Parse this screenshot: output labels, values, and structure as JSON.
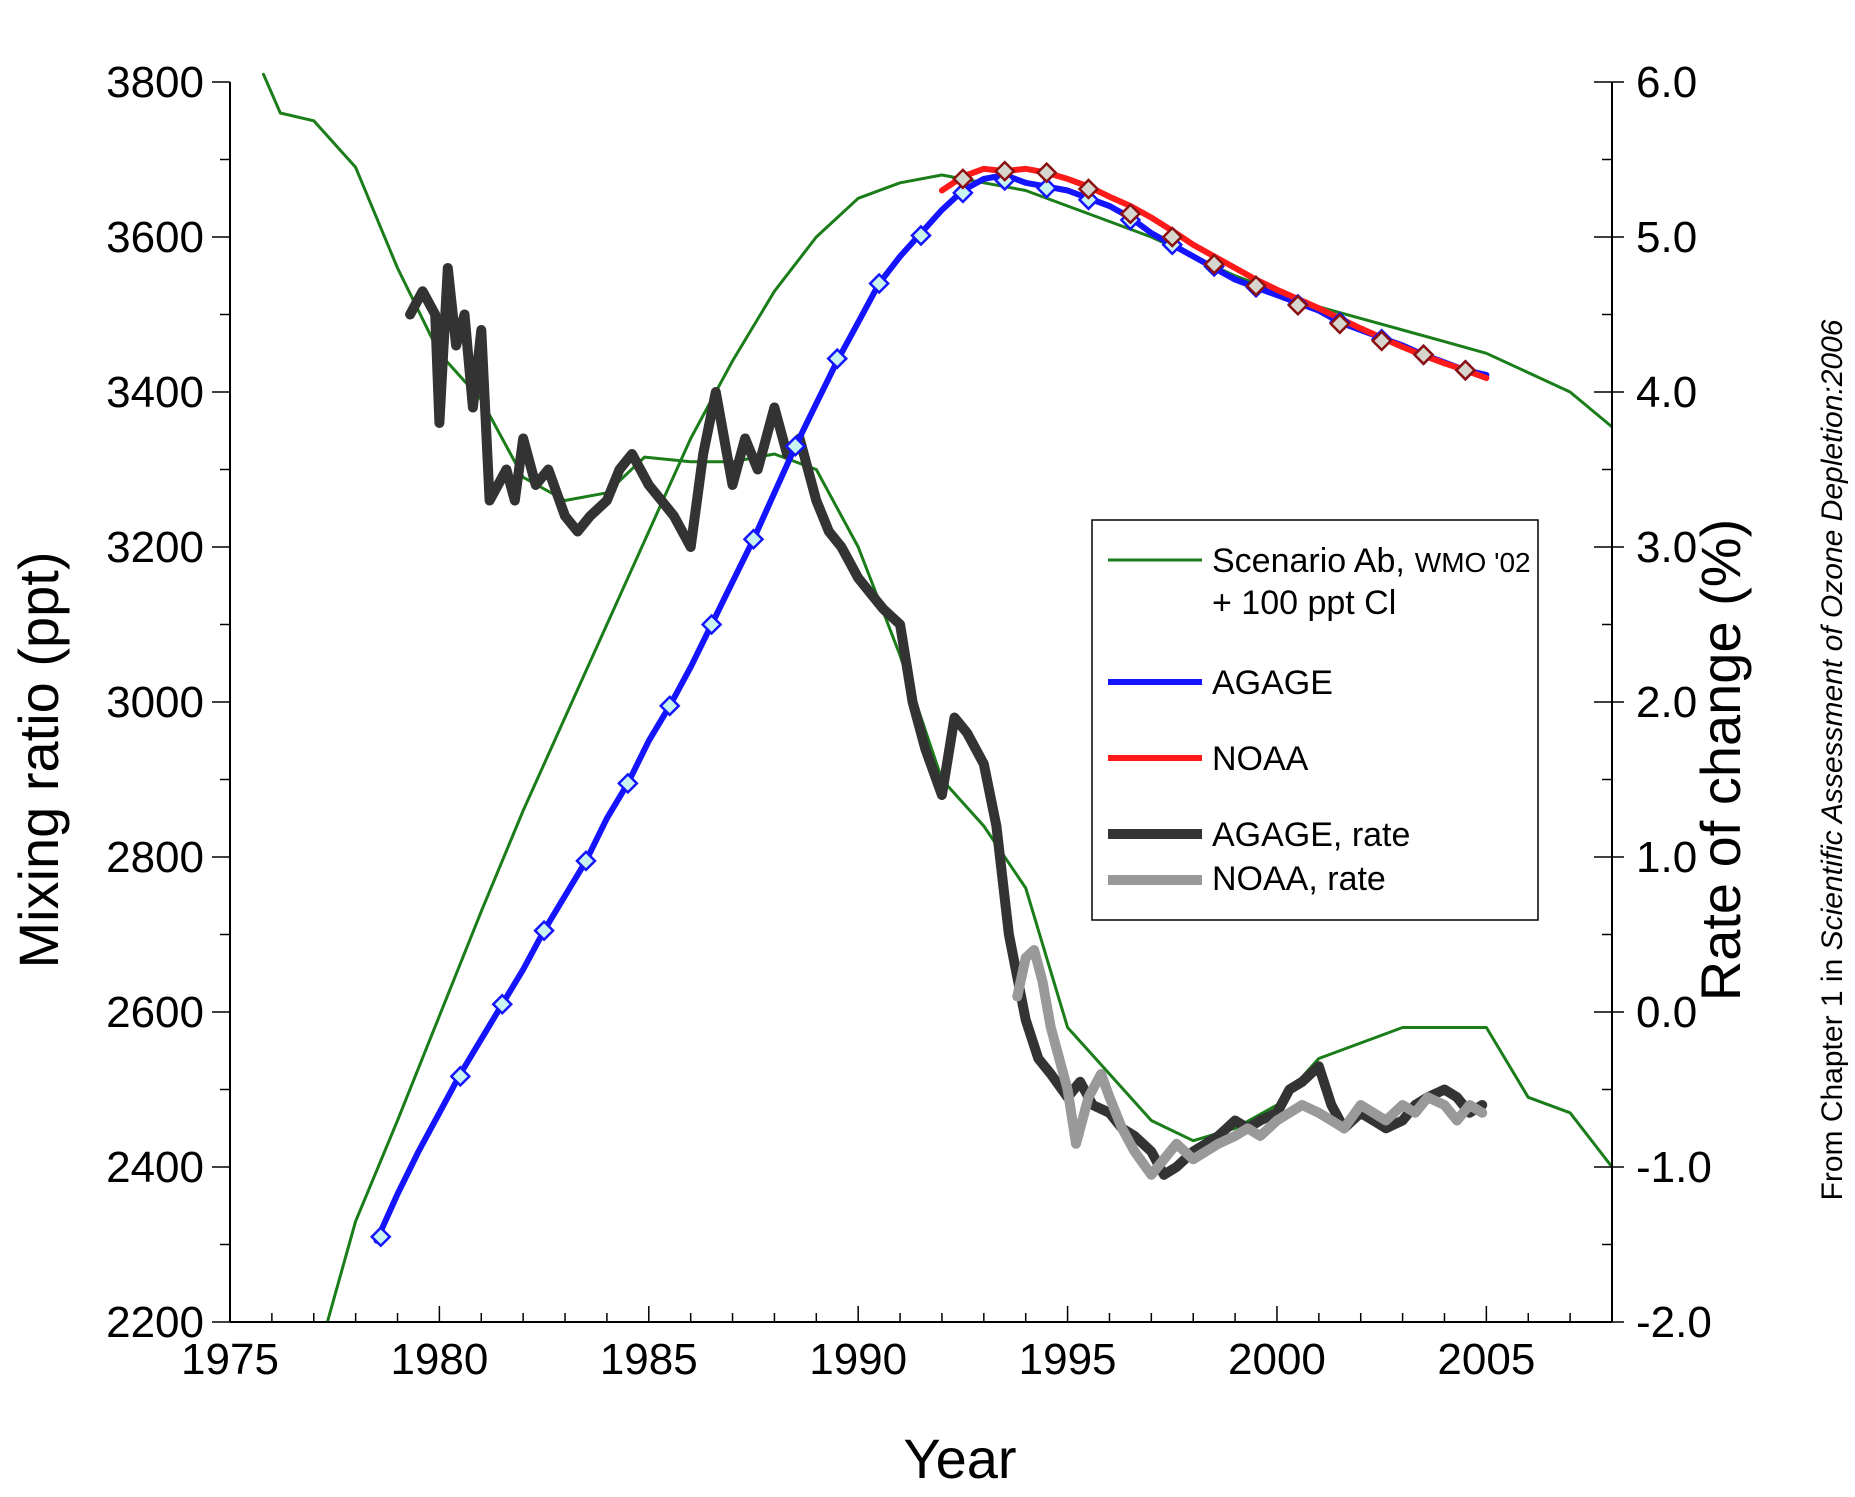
{
  "chart_data": {
    "type": "line",
    "xlabel": "Year",
    "ylabel": "Mixing ratio (ppt)",
    "y2label": "Rate of change (%)",
    "xlim": [
      1975,
      2008
    ],
    "ylim": [
      2200,
      3800
    ],
    "y2lim": [
      -2.0,
      6.0
    ],
    "x_ticks": [
      "1975",
      "1980",
      "1985",
      "1990",
      "1995",
      "2000",
      "2005"
    ],
    "y_ticks": [
      "2200",
      "2400",
      "2600",
      "2800",
      "3000",
      "3200",
      "3400",
      "3600",
      "3800"
    ],
    "y2_ticks": [
      "-2.0",
      "-1.0",
      "0.0",
      "1.0",
      "2.0",
      "3.0",
      "4.0",
      "5.0",
      "6.0"
    ],
    "grid": false,
    "legend_position": "center-right",
    "legend": {
      "scenario_line1": "Scenario Ab,",
      "scenario_small": "WMO '02",
      "scenario_line2": "+ 100 ppt Cl",
      "agage": "AGAGE",
      "noaa": "NOAA",
      "agage_rate": "AGAGE, rate",
      "noaa_rate": "NOAA, rate"
    },
    "credit": {
      "prefix": "From Chapter 1 in ",
      "italic": "Scientific Assessment of Ozone Depletion:2006"
    },
    "colors": {
      "scenario": "#1a7d1a",
      "agage": "#1414ff",
      "noaa": "#ff1a1a",
      "agage_rate": "#333333",
      "noaa_rate": "#999999",
      "marker_agage_fill": "#c9f3f0",
      "marker_noaa_fill": "#d6d6cf",
      "marker_noaa_stroke": "#8b1010"
    },
    "series": [
      {
        "key": "scenario",
        "name": "Scenario Ab, WMO '02 + 100 ppt Cl",
        "axis": "left",
        "x": [
          1977.3,
          1978,
          1979,
          1980,
          1981,
          1982,
          1983,
          1984,
          1985,
          1986,
          1987,
          1988,
          1989,
          1990,
          1991,
          1992,
          1993,
          1994,
          1995,
          1996,
          1997,
          1998,
          1999,
          2000,
          2001,
          2002,
          2003,
          2004,
          2005,
          2006,
          2007,
          2008
        ],
        "y": [
          2195,
          2330,
          2460,
          2595,
          2730,
          2860,
          2980,
          3100,
          3220,
          3340,
          3440,
          3530,
          3600,
          3650,
          3670,
          3680,
          3670,
          3660,
          3640,
          3620,
          3600,
          3575,
          3550,
          3530,
          3510,
          3495,
          3480,
          3465,
          3450,
          3425,
          3400,
          3355
        ]
      },
      {
        "key": "scenario_rate",
        "name": "",
        "axis": "right",
        "x": [
          1975.8,
          1976.2,
          1977.0,
          1978.0,
          1979.0,
          1980.0,
          1981.0,
          1982.0,
          1983.0,
          1984.0,
          1984.9,
          1986.0,
          1987.0,
          1988.0,
          1989.0,
          1990.0,
          1991.0,
          1992.0,
          1993.0,
          1994.0,
          1995.0,
          1996.0,
          1997.0,
          1998.0,
          1999.0,
          2000.0,
          2001.0,
          2002.0,
          2003.0,
          2004.0,
          2005.0,
          2006.0,
          2007.0,
          2008.0
        ],
        "y": [
          6.05,
          5.8,
          5.75,
          5.45,
          4.8,
          4.25,
          3.95,
          3.45,
          3.3,
          3.35,
          3.58,
          3.55,
          3.55,
          3.6,
          3.5,
          3.0,
          2.3,
          1.5,
          1.2,
          0.8,
          -0.1,
          -0.4,
          -0.7,
          -0.83,
          -0.75,
          -0.6,
          -0.3,
          -0.2,
          -0.1,
          -0.1,
          -0.1,
          -0.55,
          -0.65,
          -1.0
        ]
      },
      {
        "key": "agage",
        "name": "AGAGE",
        "axis": "left",
        "x": [
          1978.5,
          1979,
          1979.5,
          1980,
          1980.5,
          1981,
          1981.5,
          1982,
          1982.5,
          1983,
          1983.5,
          1984,
          1984.5,
          1985,
          1985.5,
          1986,
          1986.5,
          1987,
          1987.5,
          1988,
          1988.5,
          1989,
          1989.5,
          1990,
          1990.5,
          1991,
          1991.5,
          1992,
          1992.5,
          1993,
          1993.5,
          1994,
          1994.5,
          1995,
          1995.5,
          1996,
          1996.5,
          1997,
          1997.5,
          1998,
          1998.5,
          1999,
          1999.5,
          2000,
          2000.5,
          2001,
          2001.5,
          2002,
          2002.5,
          2003,
          2003.5,
          2004,
          2004.5,
          2005
        ],
        "y": [
          2305,
          2365,
          2420,
          2470,
          2520,
          2565,
          2610,
          2655,
          2705,
          2750,
          2795,
          2850,
          2895,
          2950,
          2995,
          3045,
          3100,
          3155,
          3210,
          3270,
          3330,
          3385,
          3440,
          3490,
          3540,
          3575,
          3605,
          3635,
          3660,
          3675,
          3680,
          3670,
          3665,
          3660,
          3650,
          3640,
          3625,
          3605,
          3590,
          3575,
          3560,
          3545,
          3535,
          3525,
          3515,
          3505,
          3490,
          3480,
          3470,
          3460,
          3448,
          3438,
          3428,
          3422
        ]
      },
      {
        "key": "noaa",
        "name": "NOAA",
        "axis": "left",
        "x": [
          1992.0,
          1992.5,
          1993.0,
          1993.5,
          1994.0,
          1994.5,
          1995.0,
          1995.5,
          1996.0,
          1996.5,
          1997.0,
          1997.5,
          1998.0,
          1998.5,
          1999.0,
          1999.5,
          2000.0,
          2000.5,
          2001.0,
          2001.5,
          2002.0,
          2002.5,
          2003.0,
          2003.5,
          2004.0,
          2004.5,
          2005.0
        ],
        "y": [
          3660,
          3678,
          3688,
          3685,
          3688,
          3683,
          3675,
          3665,
          3652,
          3640,
          3625,
          3608,
          3590,
          3575,
          3560,
          3545,
          3532,
          3520,
          3508,
          3495,
          3482,
          3470,
          3458,
          3447,
          3437,
          3428,
          3418
        ]
      },
      {
        "key": "agage_rate",
        "name": "AGAGE, rate",
        "axis": "right",
        "x": [
          1979.3,
          1979.6,
          1979.9,
          1980.0,
          1980.2,
          1980.4,
          1980.6,
          1980.8,
          1981.0,
          1981.2,
          1981.4,
          1981.6,
          1981.8,
          1982.0,
          1982.3,
          1982.6,
          1983.0,
          1983.3,
          1983.6,
          1984.0,
          1984.3,
          1984.6,
          1985.0,
          1985.3,
          1985.6,
          1986.0,
          1986.3,
          1986.6,
          1987.0,
          1987.3,
          1987.6,
          1988.0,
          1988.3,
          1988.6,
          1989.0,
          1989.3,
          1989.6,
          1990.0,
          1990.3,
          1990.6,
          1991.0,
          1991.3,
          1991.6,
          1992.0,
          1992.3,
          1992.6,
          1993.0,
          1993.3,
          1993.6,
          1994.0,
          1994.3,
          1994.6,
          1995.0,
          1995.3,
          1995.6,
          1996.0,
          1996.3,
          1996.6,
          1997.0,
          1997.3,
          1997.6,
          1998.0,
          1998.3,
          1998.6,
          1999.0,
          1999.3,
          1999.6,
          2000.0,
          2000.3,
          2000.6,
          2001.0,
          2001.3,
          2001.6,
          2002.0,
          2002.3,
          2002.6,
          2003.0,
          2003.3,
          2003.6,
          2004.0,
          2004.3,
          2004.6,
          2004.9
        ],
        "y": [
          4.5,
          4.65,
          4.5,
          3.8,
          4.8,
          4.3,
          4.5,
          3.9,
          4.4,
          3.3,
          3.4,
          3.5,
          3.3,
          3.7,
          3.4,
          3.5,
          3.2,
          3.1,
          3.2,
          3.3,
          3.5,
          3.6,
          3.4,
          3.3,
          3.2,
          3.0,
          3.6,
          4.0,
          3.4,
          3.7,
          3.5,
          3.9,
          3.6,
          3.7,
          3.3,
          3.1,
          3.0,
          2.8,
          2.7,
          2.6,
          2.5,
          2.0,
          1.7,
          1.4,
          1.9,
          1.8,
          1.6,
          1.2,
          0.5,
          -0.05,
          -0.3,
          -0.4,
          -0.55,
          -0.45,
          -0.6,
          -0.65,
          -0.75,
          -0.8,
          -0.9,
          -1.05,
          -1.0,
          -0.9,
          -0.85,
          -0.8,
          -0.7,
          -0.75,
          -0.7,
          -0.65,
          -0.5,
          -0.45,
          -0.35,
          -0.6,
          -0.75,
          -0.65,
          -0.7,
          -0.75,
          -0.7,
          -0.6,
          -0.55,
          -0.5,
          -0.55,
          -0.65,
          -0.6
        ]
      },
      {
        "key": "noaa_rate",
        "name": "NOAA, rate",
        "axis": "right",
        "x": [
          1993.8,
          1994.0,
          1994.2,
          1994.4,
          1994.6,
          1994.8,
          1995.0,
          1995.2,
          1995.5,
          1995.8,
          1996.0,
          1996.3,
          1996.6,
          1997.0,
          1997.3,
          1997.6,
          1998.0,
          1998.3,
          1998.6,
          1999.0,
          1999.3,
          1999.6,
          2000.0,
          2000.3,
          2000.6,
          2001.0,
          2001.3,
          2001.6,
          2002.0,
          2002.3,
          2002.6,
          2003.0,
          2003.3,
          2003.6,
          2004.0,
          2004.3,
          2004.6,
          2004.9
        ],
        "y": [
          0.1,
          0.35,
          0.4,
          0.2,
          -0.1,
          -0.3,
          -0.5,
          -0.85,
          -0.55,
          -0.4,
          -0.55,
          -0.75,
          -0.9,
          -1.05,
          -0.95,
          -0.85,
          -0.95,
          -0.9,
          -0.85,
          -0.8,
          -0.75,
          -0.8,
          -0.7,
          -0.65,
          -0.6,
          -0.65,
          -0.7,
          -0.75,
          -0.6,
          -0.65,
          -0.7,
          -0.6,
          -0.65,
          -0.55,
          -0.6,
          -0.7,
          -0.6,
          -0.65
        ]
      }
    ],
    "markers": {
      "agage_x": [
        1978.6,
        1980.5,
        1981.5,
        1982.5,
        1983.5,
        1984.5,
        1985.5,
        1986.5,
        1987.5,
        1988.5,
        1989.5,
        1990.5,
        1991.5,
        1992.5,
        1993.5,
        1994.5,
        1995.5,
        1996.5,
        1997.5,
        1998.5,
        1999.5,
        2000.5,
        2001.5,
        2002.5,
        2003.5,
        2004.5
      ],
      "agage_y": [
        2310,
        2517,
        2610,
        2705,
        2795,
        2895,
        2995,
        3100,
        3210,
        3330,
        3443,
        3540,
        3602,
        3657,
        3673,
        3663,
        3648,
        3622,
        3590,
        3562,
        3535,
        3513,
        3490,
        3468,
        3448,
        3428
      ],
      "noaa_x": [
        1992.5,
        1993.5,
        1994.5,
        1995.5,
        1996.5,
        1997.5,
        1998.5,
        1999.5,
        2000.5,
        2001.5,
        2002.5,
        2003.5,
        2004.5
      ],
      "noaa_y": [
        3675,
        3685,
        3683,
        3662,
        3630,
        3600,
        3565,
        3537,
        3512,
        3488,
        3466,
        3448,
        3428
      ]
    }
  }
}
